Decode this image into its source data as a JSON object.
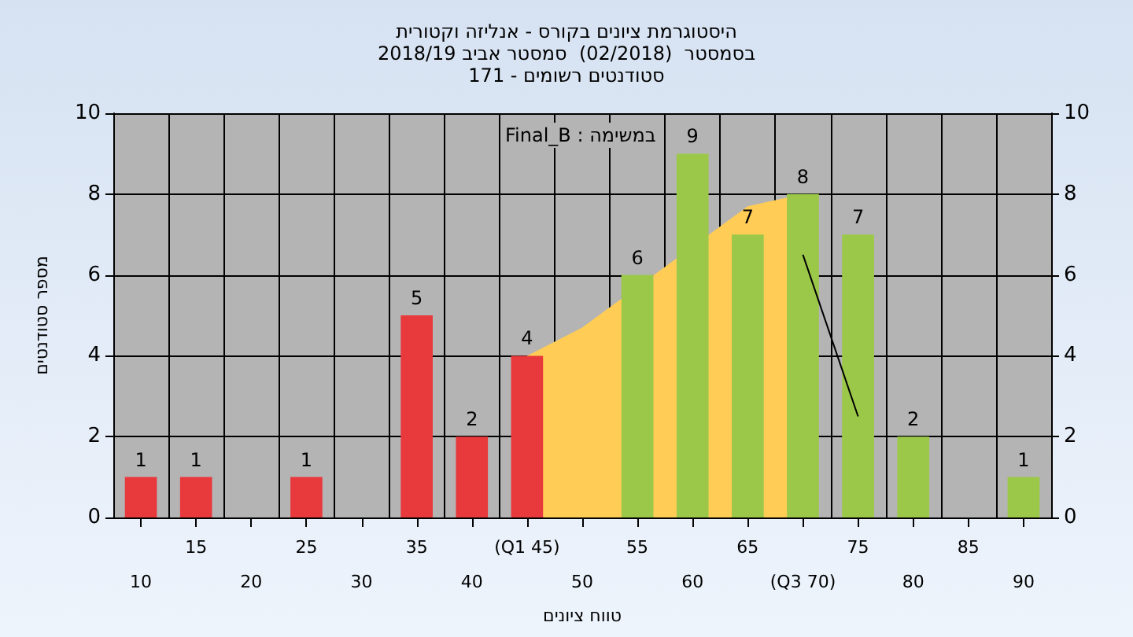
{
  "chart_data": {
    "type": "bar",
    "title": "היסטוגרמת ציונים בקורס - אנליזה וקטורית",
    "subtitle": "בסמסטר  (02/2018)  סמסטר אביב 2018/19\nסטודנטים רשומים - 171",
    "xlabel": "טווח ציונים",
    "ylabel": "מספר סטודנטים",
    "annotations": [
      "Final_B : במשימה"
    ],
    "categories": [
      "10",
      "15",
      "20",
      "25",
      "30",
      "35",
      "40",
      "(Q1 45)",
      "50",
      "55",
      "60",
      "65",
      "(Q3 70)",
      "75",
      "80",
      "85",
      "90"
    ],
    "series": [
      {
        "type": "area",
        "color": "#ffcc55",
        "values": [
          null,
          null,
          null,
          null,
          null,
          null,
          null,
          4,
          4.7,
          null,
          null,
          7.7,
          8,
          null,
          null,
          null,
          null
        ]
      },
      {
        "type": "line",
        "color": "#000000",
        "values": [
          null,
          null,
          null,
          null,
          null,
          null,
          null,
          null,
          null,
          null,
          null,
          null,
          6.5,
          2.5,
          null,
          null,
          null
        ]
      },
      {
        "values": [
          1,
          1,
          0,
          1,
          0,
          5,
          2,
          4,
          0,
          6,
          9,
          7,
          8,
          7,
          2,
          0,
          1
        ],
        "colors": [
          "#e8393c",
          "#e8393c",
          "#e8393c",
          "#e8393c",
          "#e8393c",
          "#e8393c",
          "#e8393c",
          "#e8393c",
          "#9cc84a",
          "#9cc84a",
          "#9cc84a",
          "#9cc84a",
          "#9cc84a",
          "#9cc84a",
          "#9cc84a",
          "#9cc84a",
          "#9cc84a"
        ],
        "value_labels": [
          "1",
          "1",
          null,
          "1",
          null,
          "5",
          "2",
          "4",
          null,
          "6",
          "9",
          "7",
          "8",
          "7",
          "2",
          null,
          "1"
        ]
      }
    ],
    "ylim": [
      0,
      10
    ],
    "yticks": [
      0,
      2,
      4,
      6,
      8,
      10
    ],
    "y2lim": [
      0,
      10
    ],
    "y2ticks": [
      0,
      2,
      4,
      6,
      8,
      10
    ],
    "grid": true
  }
}
